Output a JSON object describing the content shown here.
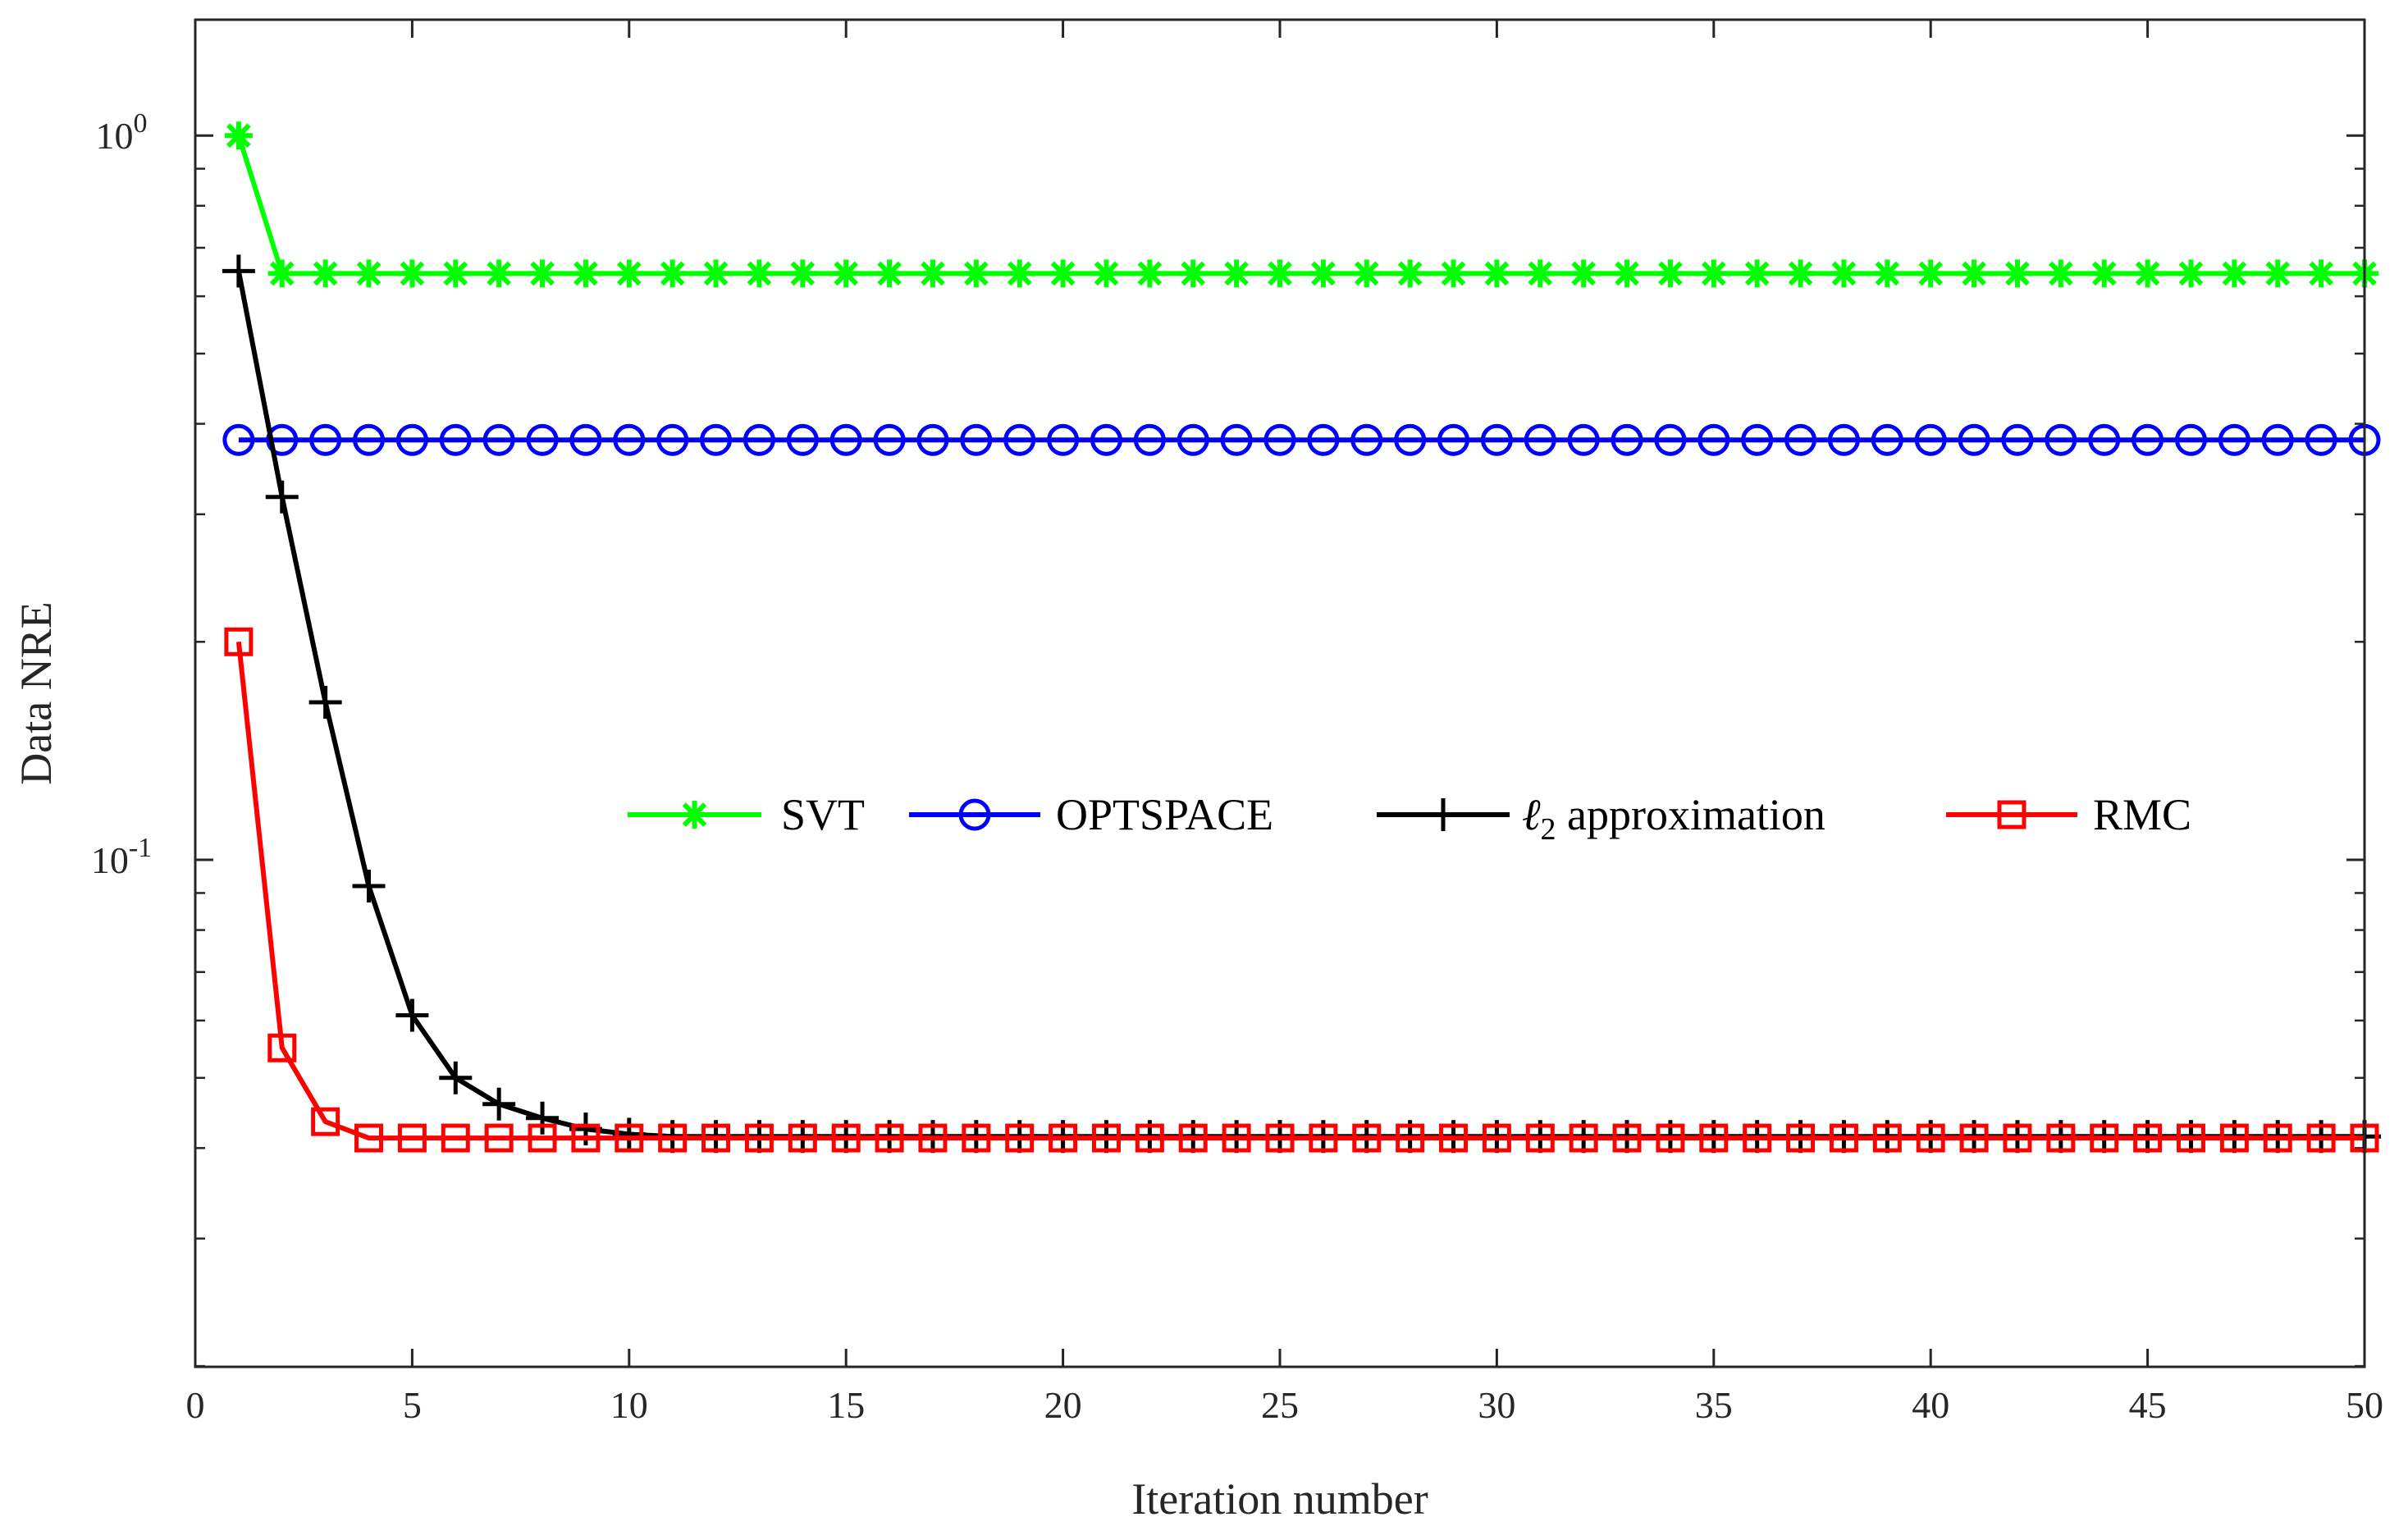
{
  "chart_data": {
    "type": "line",
    "title": "",
    "xlabel": "Iteration number",
    "ylabel": "Data NRE",
    "xlim": [
      0,
      50
    ],
    "ylim_log10": [
      -1.7,
      0.16
    ],
    "yscale": "log",
    "x_ticks": [
      0,
      5,
      10,
      15,
      20,
      25,
      30,
      35,
      40,
      45,
      50
    ],
    "y_ticks": [
      {
        "value": 1,
        "base": "10",
        "exponent": "0"
      },
      {
        "value": 0.1,
        "base": "10",
        "exponent": "-1"
      }
    ],
    "legend_position": "center-right",
    "series": [
      {
        "name": "SVT",
        "color": "#00ff00",
        "marker": "asterisk",
        "x": [
          1,
          2,
          3,
          4,
          5,
          6,
          7,
          8,
          9,
          10,
          11,
          12,
          13,
          14,
          15,
          16,
          17,
          18,
          19,
          20,
          21,
          22,
          23,
          24,
          25,
          26,
          27,
          28,
          29,
          30,
          31,
          32,
          33,
          34,
          35,
          36,
          37,
          38,
          39,
          40,
          41,
          42,
          43,
          44,
          45,
          46,
          47,
          48,
          49,
          50
        ],
        "values": [
          1.0,
          0.645,
          0.645,
          0.645,
          0.645,
          0.645,
          0.645,
          0.645,
          0.645,
          0.645,
          0.645,
          0.645,
          0.645,
          0.645,
          0.645,
          0.645,
          0.645,
          0.645,
          0.645,
          0.645,
          0.645,
          0.645,
          0.645,
          0.645,
          0.645,
          0.645,
          0.645,
          0.645,
          0.645,
          0.645,
          0.645,
          0.645,
          0.645,
          0.645,
          0.645,
          0.645,
          0.645,
          0.645,
          0.645,
          0.645,
          0.645,
          0.645,
          0.645,
          0.645,
          0.645,
          0.645,
          0.645,
          0.645,
          0.645,
          0.645
        ]
      },
      {
        "name": "OPTSPACE",
        "color": "#0000ff",
        "marker": "circle",
        "x": [
          1,
          2,
          3,
          4,
          5,
          6,
          7,
          8,
          9,
          10,
          11,
          12,
          13,
          14,
          15,
          16,
          17,
          18,
          19,
          20,
          21,
          22,
          23,
          24,
          25,
          26,
          27,
          28,
          29,
          30,
          31,
          32,
          33,
          34,
          35,
          36,
          37,
          38,
          39,
          40,
          41,
          42,
          43,
          44,
          45,
          46,
          47,
          48,
          49,
          50
        ],
        "values": [
          0.38,
          0.38,
          0.38,
          0.38,
          0.38,
          0.38,
          0.38,
          0.38,
          0.38,
          0.38,
          0.38,
          0.38,
          0.38,
          0.38,
          0.38,
          0.38,
          0.38,
          0.38,
          0.38,
          0.38,
          0.38,
          0.38,
          0.38,
          0.38,
          0.38,
          0.38,
          0.38,
          0.38,
          0.38,
          0.38,
          0.38,
          0.38,
          0.38,
          0.38,
          0.38,
          0.38,
          0.38,
          0.38,
          0.38,
          0.38,
          0.38,
          0.38,
          0.38,
          0.38,
          0.38,
          0.38,
          0.38,
          0.38,
          0.38,
          0.38
        ]
      },
      {
        "name": "ℓ2 approximation",
        "name_main": "ℓ",
        "name_sub": "2",
        "name_rest": " approximation",
        "color": "#000000",
        "marker": "plus",
        "x": [
          1,
          2,
          3,
          4,
          5,
          6,
          7,
          8,
          9,
          10,
          11,
          12,
          13,
          14,
          15,
          16,
          17,
          18,
          19,
          20,
          21,
          22,
          23,
          24,
          25,
          26,
          27,
          28,
          29,
          30,
          31,
          32,
          33,
          34,
          35,
          36,
          37,
          38,
          39,
          40,
          41,
          42,
          43,
          44,
          45,
          46,
          47,
          48,
          49,
          50
        ],
        "values": [
          0.65,
          0.317,
          0.165,
          0.092,
          0.061,
          0.05,
          0.046,
          0.044,
          0.0425,
          0.0418,
          0.0415,
          0.0415,
          0.0415,
          0.0415,
          0.0415,
          0.0415,
          0.0415,
          0.0415,
          0.0415,
          0.0415,
          0.0415,
          0.0415,
          0.0415,
          0.0415,
          0.0415,
          0.0415,
          0.0415,
          0.0415,
          0.0415,
          0.0415,
          0.0415,
          0.0415,
          0.0415,
          0.0415,
          0.0415,
          0.0415,
          0.0415,
          0.0415,
          0.0415,
          0.0415,
          0.0415,
          0.0415,
          0.0415,
          0.0415,
          0.0415,
          0.0415,
          0.0415,
          0.0415,
          0.0415,
          0.0415
        ]
      },
      {
        "name": "RMC",
        "color": "#ff0000",
        "marker": "square",
        "x": [
          1,
          2,
          3,
          4,
          5,
          6,
          7,
          8,
          9,
          10,
          11,
          12,
          13,
          14,
          15,
          16,
          17,
          18,
          19,
          20,
          21,
          22,
          23,
          24,
          25,
          26,
          27,
          28,
          29,
          30,
          31,
          32,
          33,
          34,
          35,
          36,
          37,
          38,
          39,
          40,
          41,
          42,
          43,
          44,
          45,
          46,
          47,
          48,
          49,
          50
        ],
        "values": [
          0.2,
          0.055,
          0.0435,
          0.0413,
          0.0413,
          0.0413,
          0.0413,
          0.0413,
          0.0413,
          0.0413,
          0.0413,
          0.0413,
          0.0413,
          0.0413,
          0.0413,
          0.0413,
          0.0413,
          0.0413,
          0.0413,
          0.0413,
          0.0413,
          0.0413,
          0.0413,
          0.0413,
          0.0413,
          0.0413,
          0.0413,
          0.0413,
          0.0413,
          0.0413,
          0.0413,
          0.0413,
          0.0413,
          0.0413,
          0.0413,
          0.0413,
          0.0413,
          0.0413,
          0.0413,
          0.0413,
          0.0413,
          0.0413,
          0.0413,
          0.0413,
          0.0413,
          0.0413,
          0.0413,
          0.0413,
          0.0413,
          0.0413
        ]
      }
    ]
  }
}
